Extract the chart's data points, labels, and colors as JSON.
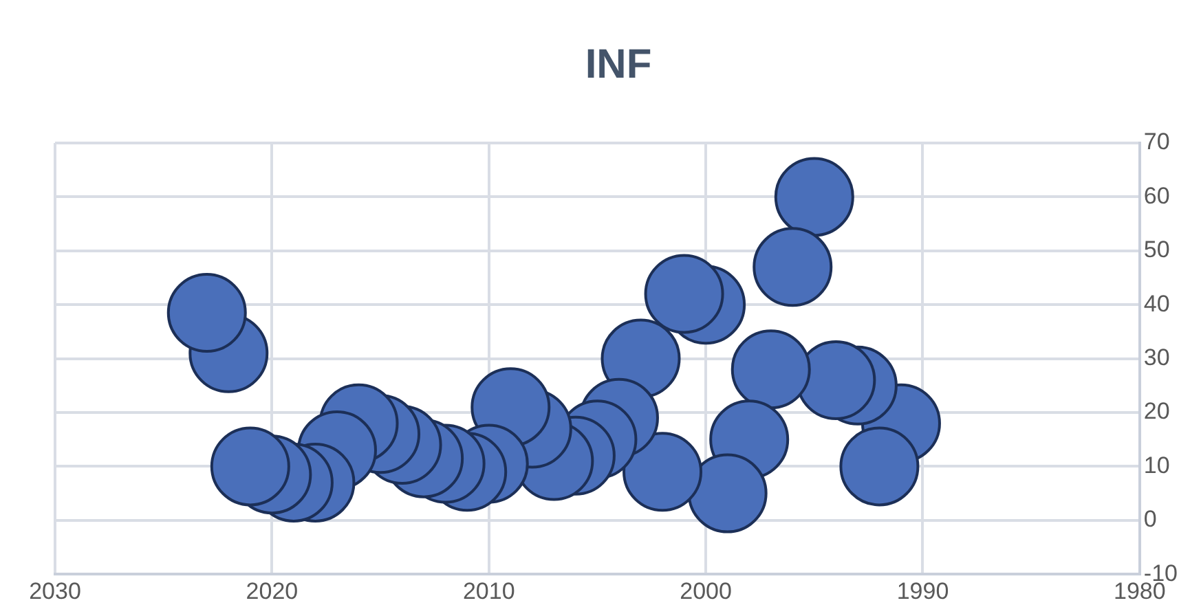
{
  "chart_data": {
    "type": "bubble",
    "title": "INF",
    "x": [
      1991,
      1992,
      1993,
      1994,
      1995,
      1996,
      1997,
      1998,
      1999,
      2000,
      2001,
      2002,
      2003,
      2004,
      2005,
      2006,
      2007,
      2008,
      2009,
      2010,
      2011,
      2012,
      2013,
      2014,
      2015,
      2016,
      2017,
      2018,
      2019,
      2020,
      2021,
      2022,
      2023
    ],
    "series": [
      {
        "color": "#4a6fba",
        "values": [
          18,
          10,
          25,
          26,
          60,
          47,
          28,
          15,
          5,
          40,
          42,
          9,
          30,
          19,
          15,
          12,
          11,
          17,
          21,
          10.5,
          9,
          10.5,
          11.5,
          14,
          16,
          18,
          13,
          7,
          7,
          8.5,
          10,
          31,
          38.5
        ],
        "sizes": [
          1,
          1,
          1,
          1,
          1,
          1,
          1,
          1,
          1,
          1,
          1,
          1,
          1,
          1,
          1,
          1,
          1,
          1,
          1,
          1,
          1,
          1,
          1,
          1,
          1,
          1,
          1,
          1,
          1,
          1,
          1,
          1,
          1
        ]
      }
    ],
    "xlim": [
      2030,
      1980
    ],
    "xticks": [
      2030,
      2020,
      2010,
      2000,
      1990,
      1980
    ],
    "ylim": [
      -10,
      70
    ],
    "yticks": [
      -10,
      0,
      10,
      20,
      30,
      40,
      50,
      60,
      70
    ],
    "grid": true,
    "legend": false
  }
}
